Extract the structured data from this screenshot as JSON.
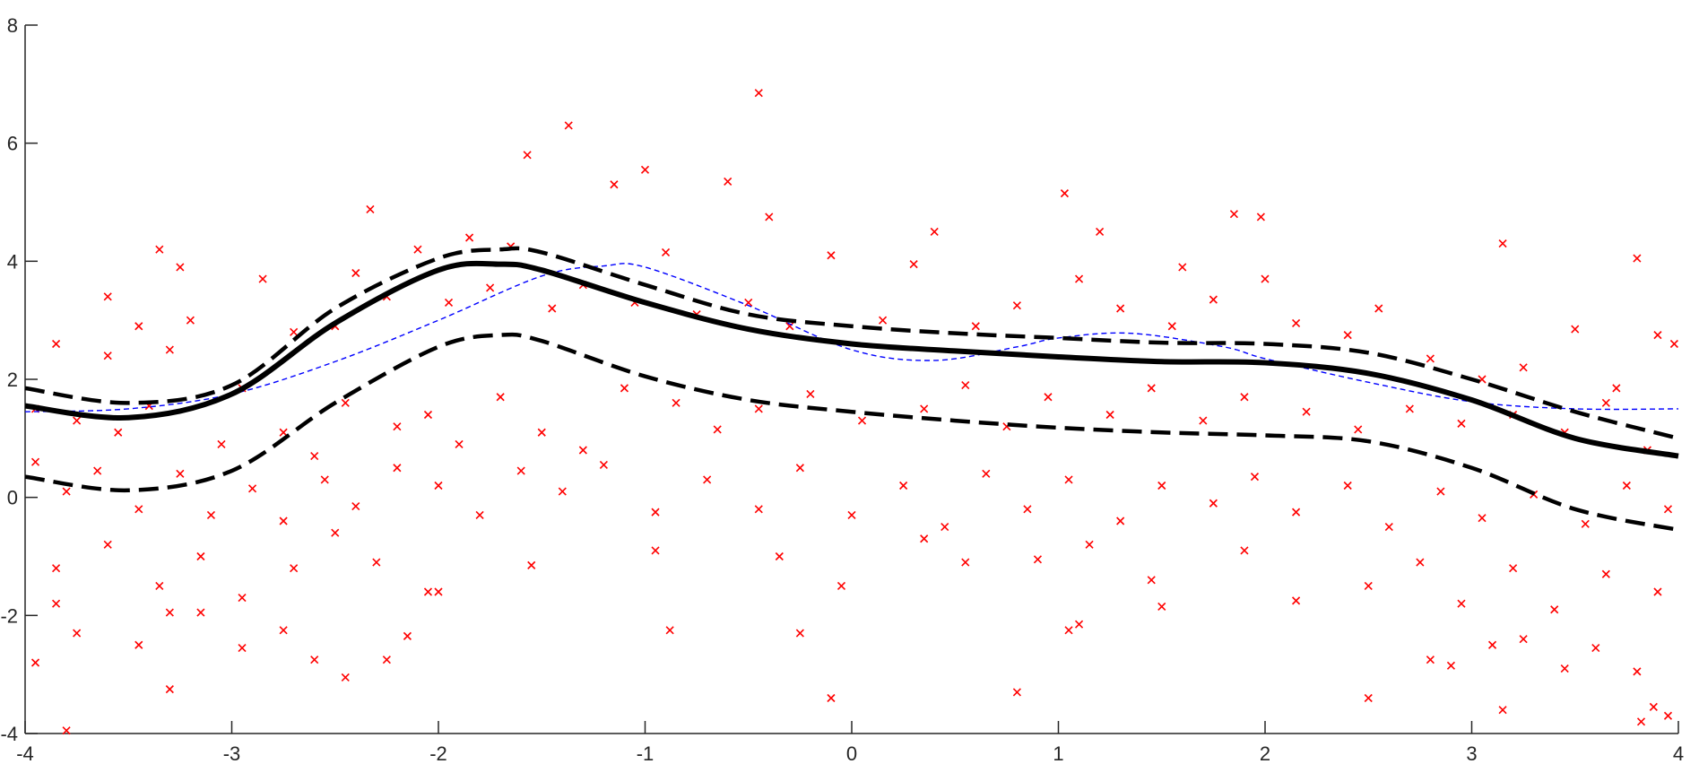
{
  "chart_data": {
    "type": "scatter",
    "xlim": [
      -4,
      4
    ],
    "ylim": [
      -4,
      8
    ],
    "grid": false,
    "x_ticks": [
      -4,
      -3,
      -2,
      -1,
      0,
      1,
      2,
      3,
      4
    ],
    "y_ticks": [
      -4,
      -2,
      0,
      2,
      4,
      6,
      8
    ],
    "x_tick_labels": [
      "-4",
      "-3",
      "-2",
      "-1",
      "0",
      "1",
      "2",
      "3",
      "4"
    ],
    "y_tick_labels": [
      "-4",
      "-2",
      "0",
      "2",
      "4",
      "6",
      "8"
    ],
    "colors": {
      "points": "#ff0000",
      "mean": "#000000",
      "band": "#000000",
      "true_function": "#0000ff",
      "axis": "#262626"
    },
    "series": [
      {
        "style": "solid thick black",
        "role": "mean",
        "x": [
          -4.0,
          -3.5,
          -3.0,
          -2.5,
          -2.0,
          -1.7,
          -1.5,
          -1.0,
          -0.5,
          0.0,
          0.5,
          1.0,
          1.5,
          2.0,
          2.5,
          3.0,
          3.5,
          4.0
        ],
        "y": [
          1.55,
          1.35,
          1.75,
          2.95,
          3.85,
          3.95,
          3.85,
          3.3,
          2.85,
          2.6,
          2.48,
          2.38,
          2.3,
          2.28,
          2.1,
          1.65,
          1.0,
          0.7
        ]
      },
      {
        "style": "dashed thick black",
        "role": "upper-band",
        "x": [
          -4.0,
          -3.5,
          -3.0,
          -2.5,
          -2.0,
          -1.7,
          -1.5,
          -1.0,
          -0.5,
          0.0,
          0.5,
          1.0,
          1.5,
          2.0,
          2.5,
          3.0,
          3.5,
          4.0
        ],
        "y": [
          1.85,
          1.6,
          1.9,
          3.2,
          4.05,
          4.2,
          4.15,
          3.6,
          3.1,
          2.9,
          2.78,
          2.7,
          2.62,
          2.6,
          2.45,
          2.0,
          1.45,
          1.0
        ]
      },
      {
        "style": "dashed thick black",
        "role": "lower-band",
        "x": [
          -4.0,
          -3.5,
          -3.0,
          -2.5,
          -2.0,
          -1.7,
          -1.5,
          -1.0,
          -0.5,
          0.0,
          0.5,
          1.0,
          1.5,
          2.0,
          2.5,
          3.0,
          3.5,
          4.0
        ],
        "y": [
          0.35,
          0.12,
          0.45,
          1.6,
          2.55,
          2.75,
          2.65,
          2.05,
          1.65,
          1.45,
          1.3,
          1.18,
          1.1,
          1.05,
          0.95,
          0.5,
          -0.2,
          -0.55
        ]
      },
      {
        "style": "thin dashed blue",
        "role": "true-function",
        "x": [
          -4.0,
          -3.5,
          -3.0,
          -2.5,
          -2.0,
          -1.5,
          -1.2,
          -1.0,
          -0.5,
          0.0,
          0.4,
          0.8,
          1.0,
          1.35,
          1.8,
          2.0,
          2.5,
          3.0,
          3.5,
          4.0
        ],
        "y": [
          1.45,
          1.5,
          1.75,
          2.3,
          3.0,
          3.75,
          3.92,
          3.9,
          3.25,
          2.5,
          2.32,
          2.55,
          2.7,
          2.78,
          2.55,
          2.35,
          1.95,
          1.62,
          1.5,
          1.5
        ]
      }
    ],
    "points": [
      [
        -0.45,
        6.85
      ],
      [
        -1.37,
        6.3
      ],
      [
        -1.57,
        5.8
      ],
      [
        -1.0,
        5.55
      ],
      [
        -0.6,
        5.35
      ],
      [
        1.03,
        5.15
      ],
      [
        -2.33,
        4.88
      ],
      [
        -1.15,
        5.3
      ],
      [
        1.85,
        4.8
      ],
      [
        1.98,
        4.75
      ],
      [
        0.4,
        4.5
      ],
      [
        1.2,
        4.5
      ],
      [
        3.15,
        4.3
      ],
      [
        3.8,
        4.05
      ],
      [
        -3.35,
        4.2
      ],
      [
        -3.25,
        3.9
      ],
      [
        -2.1,
        4.2
      ],
      [
        -1.85,
        4.4
      ],
      [
        -1.65,
        4.25
      ],
      [
        -0.9,
        4.15
      ],
      [
        -0.4,
        4.75
      ],
      [
        -0.1,
        4.1
      ],
      [
        0.3,
        3.95
      ],
      [
        1.1,
        3.7
      ],
      [
        1.6,
        3.9
      ],
      [
        2.0,
        3.7
      ],
      [
        2.55,
        3.2
      ],
      [
        -3.85,
        2.6
      ],
      [
        -3.6,
        2.4
      ],
      [
        -3.6,
        3.4
      ],
      [
        -3.45,
        2.9
      ],
      [
        -3.3,
        2.5
      ],
      [
        -3.2,
        3.0
      ],
      [
        -2.85,
        3.7
      ],
      [
        -2.7,
        2.8
      ],
      [
        -2.5,
        2.9
      ],
      [
        -2.4,
        3.8
      ],
      [
        -2.25,
        3.4
      ],
      [
        -1.95,
        3.3
      ],
      [
        -1.75,
        3.55
      ],
      [
        -1.45,
        3.2
      ],
      [
        -1.3,
        3.6
      ],
      [
        -1.05,
        3.3
      ],
      [
        -0.75,
        3.1
      ],
      [
        -0.5,
        3.3
      ],
      [
        -0.3,
        2.9
      ],
      [
        0.15,
        3.0
      ],
      [
        0.6,
        2.9
      ],
      [
        0.8,
        3.25
      ],
      [
        1.3,
        3.2
      ],
      [
        1.55,
        2.9
      ],
      [
        1.75,
        3.35
      ],
      [
        2.15,
        2.95
      ],
      [
        2.4,
        2.75
      ],
      [
        2.8,
        2.35
      ],
      [
        3.05,
        2.0
      ],
      [
        3.25,
        2.2
      ],
      [
        3.5,
        2.85
      ],
      [
        3.7,
        1.85
      ],
      [
        3.9,
        2.75
      ],
      [
        3.98,
        2.6
      ],
      [
        -3.95,
        1.5
      ],
      [
        -3.75,
        1.3
      ],
      [
        -3.55,
        1.1
      ],
      [
        -3.4,
        1.55
      ],
      [
        -3.05,
        0.9
      ],
      [
        -2.95,
        1.85
      ],
      [
        -2.75,
        1.1
      ],
      [
        -2.6,
        0.7
      ],
      [
        -2.45,
        1.6
      ],
      [
        -2.2,
        1.2
      ],
      [
        -2.05,
        1.4
      ],
      [
        -1.9,
        0.9
      ],
      [
        -1.7,
        1.7
      ],
      [
        -1.5,
        1.1
      ],
      [
        -1.3,
        0.8
      ],
      [
        -1.1,
        1.85
      ],
      [
        -0.85,
        1.6
      ],
      [
        -0.65,
        1.15
      ],
      [
        -0.45,
        1.5
      ],
      [
        -0.2,
        1.75
      ],
      [
        0.05,
        1.3
      ],
      [
        0.35,
        1.5
      ],
      [
        0.55,
        1.9
      ],
      [
        0.75,
        1.2
      ],
      [
        0.95,
        1.7
      ],
      [
        1.25,
        1.4
      ],
      [
        1.45,
        1.85
      ],
      [
        1.7,
        1.3
      ],
      [
        1.9,
        1.7
      ],
      [
        2.2,
        1.45
      ],
      [
        2.45,
        1.15
      ],
      [
        2.7,
        1.5
      ],
      [
        2.95,
        1.25
      ],
      [
        3.2,
        1.4
      ],
      [
        3.45,
        1.1
      ],
      [
        3.65,
        1.6
      ],
      [
        3.85,
        0.8
      ],
      [
        -3.95,
        0.6
      ],
      [
        -3.8,
        0.1
      ],
      [
        -3.65,
        0.45
      ],
      [
        -3.45,
        -0.2
      ],
      [
        -3.25,
        0.4
      ],
      [
        -3.1,
        -0.3
      ],
      [
        -2.9,
        0.15
      ],
      [
        -2.75,
        -0.4
      ],
      [
        -2.55,
        0.3
      ],
      [
        -2.4,
        -0.15
      ],
      [
        -2.2,
        0.5
      ],
      [
        -2.0,
        0.2
      ],
      [
        -1.8,
        -0.3
      ],
      [
        -1.6,
        0.45
      ],
      [
        -1.4,
        0.1
      ],
      [
        -1.2,
        0.55
      ],
      [
        -0.95,
        -0.25
      ],
      [
        -0.7,
        0.3
      ],
      [
        -0.45,
        -0.2
      ],
      [
        -0.25,
        0.5
      ],
      [
        0.0,
        -0.3
      ],
      [
        0.25,
        0.2
      ],
      [
        0.45,
        -0.5
      ],
      [
        0.65,
        0.4
      ],
      [
        0.85,
        -0.2
      ],
      [
        1.05,
        0.3
      ],
      [
        1.3,
        -0.4
      ],
      [
        1.5,
        0.2
      ],
      [
        1.75,
        -0.1
      ],
      [
        1.95,
        0.35
      ],
      [
        2.15,
        -0.25
      ],
      [
        2.4,
        0.2
      ],
      [
        2.6,
        -0.5
      ],
      [
        2.85,
        0.1
      ],
      [
        3.05,
        -0.35
      ],
      [
        3.3,
        0.05
      ],
      [
        3.55,
        -0.45
      ],
      [
        3.75,
        0.2
      ],
      [
        3.95,
        -0.2
      ],
      [
        -3.85,
        -1.2
      ],
      [
        -3.6,
        -0.8
      ],
      [
        -3.35,
        -1.5
      ],
      [
        -3.15,
        -1.0
      ],
      [
        -2.95,
        -1.7
      ],
      [
        -2.7,
        -1.2
      ],
      [
        -2.5,
        -0.6
      ],
      [
        -2.3,
        -1.1
      ],
      [
        -2.05,
        -1.6
      ],
      [
        -1.55,
        -1.15
      ],
      [
        -0.95,
        -0.9
      ],
      [
        -0.35,
        -1.0
      ],
      [
        -0.05,
        -1.5
      ],
      [
        0.35,
        -0.7
      ],
      [
        0.55,
        -1.1
      ],
      [
        0.9,
        -1.05
      ],
      [
        1.15,
        -0.8
      ],
      [
        1.45,
        -1.4
      ],
      [
        1.9,
        -0.9
      ],
      [
        2.5,
        -1.5
      ],
      [
        2.75,
        -1.1
      ],
      [
        2.95,
        -1.8
      ],
      [
        3.2,
        -1.2
      ],
      [
        3.4,
        -1.9
      ],
      [
        3.65,
        -1.3
      ],
      [
        3.9,
        -1.6
      ],
      [
        -3.95,
        -2.8
      ],
      [
        -3.85,
        -1.8
      ],
      [
        -3.75,
        -2.3
      ],
      [
        -3.45,
        -2.5
      ],
      [
        -3.3,
        -1.95
      ],
      [
        -3.15,
        -1.95
      ],
      [
        -2.95,
        -2.55
      ],
      [
        -2.75,
        -2.25
      ],
      [
        -2.6,
        -2.75
      ],
      [
        -2.45,
        -3.05
      ],
      [
        -2.25,
        -2.75
      ],
      [
        -2.15,
        -2.35
      ],
      [
        -2.0,
        -1.6
      ],
      [
        -0.88,
        -2.25
      ],
      [
        -0.25,
        -2.3
      ],
      [
        1.05,
        -2.25
      ],
      [
        1.1,
        -2.15
      ],
      [
        1.5,
        -1.85
      ],
      [
        2.15,
        -1.75
      ],
      [
        2.8,
        -2.75
      ],
      [
        2.9,
        -2.85
      ],
      [
        3.1,
        -2.5
      ],
      [
        3.25,
        -2.4
      ],
      [
        3.45,
        -2.9
      ],
      [
        3.6,
        -2.55
      ],
      [
        3.8,
        -2.95
      ],
      [
        -3.8,
        -3.95
      ],
      [
        -3.3,
        -3.25
      ],
      [
        -0.1,
        -3.4
      ],
      [
        0.8,
        -3.3
      ],
      [
        2.5,
        -3.4
      ],
      [
        3.15,
        -3.6
      ],
      [
        3.82,
        -3.8
      ],
      [
        3.88,
        -3.55
      ],
      [
        3.95,
        -3.7
      ]
    ]
  }
}
